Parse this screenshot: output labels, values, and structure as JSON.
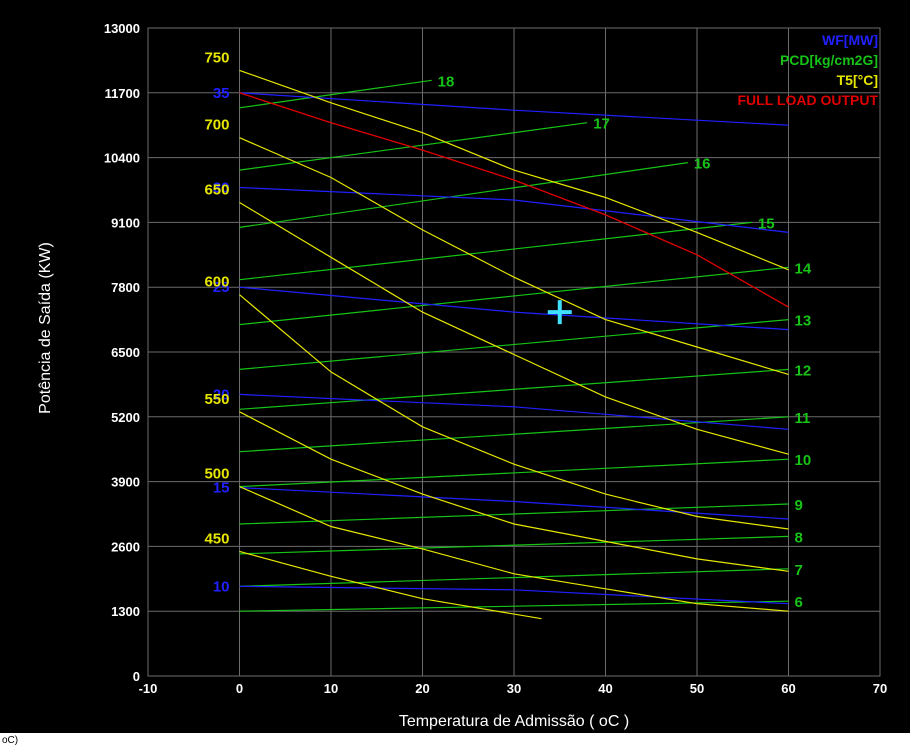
{
  "chart_data": {
    "type": "line",
    "xlabel": "Temperatura de Admissão ( oC )",
    "ylabel": "Potência de Saída (KW)",
    "xlim": [
      -10,
      70
    ],
    "ylim": [
      0,
      13000
    ],
    "x_ticks": [
      "-10",
      "0",
      "10",
      "20",
      "30",
      "40",
      "50",
      "60",
      "70"
    ],
    "y_ticks": [
      "0",
      "1300",
      "2600",
      "3900",
      "5200",
      "6500",
      "7800",
      "9100",
      "10400",
      "11700",
      "13000"
    ],
    "grid": true,
    "colors": {
      "background": "#000000",
      "grid": "#6b6b6b",
      "wf": "#2020ff",
      "pcd": "#16c316",
      "t5": "#e6e600",
      "full_load": "#e00000",
      "marker": "#40e0ff"
    },
    "legend": [
      {
        "label": "WF[MW]",
        "color": "#2020ff"
      },
      {
        "label": "PCD[kg/cm2G]",
        "color": "#16c316"
      },
      {
        "label": "T5[°C]",
        "color": "#e6e600"
      },
      {
        "label": "FULL LOAD OUTPUT",
        "color": "#e00000"
      }
    ],
    "legend_position": "top-right",
    "marker_point": {
      "x": 35,
      "y": 7300
    },
    "pcd_series": [
      {
        "label": "6",
        "x": [
          0,
          60
        ],
        "y": [
          1300,
          1500
        ]
      },
      {
        "label": "7",
        "x": [
          0,
          60
        ],
        "y": [
          1800,
          2150
        ]
      },
      {
        "label": "8",
        "x": [
          0,
          60
        ],
        "y": [
          2450,
          2800
        ]
      },
      {
        "label": "9",
        "x": [
          0,
          60
        ],
        "y": [
          3050,
          3450
        ]
      },
      {
        "label": "10",
        "x": [
          0,
          60
        ],
        "y": [
          3800,
          4350
        ]
      },
      {
        "label": "11",
        "x": [
          0,
          60
        ],
        "y": [
          4500,
          5200
        ]
      },
      {
        "label": "12",
        "x": [
          0,
          60
        ],
        "y": [
          5350,
          6150
        ]
      },
      {
        "label": "13",
        "x": [
          0,
          60
        ],
        "y": [
          6150,
          7150
        ]
      },
      {
        "label": "14",
        "x": [
          0,
          60
        ],
        "y": [
          7050,
          8200
        ]
      },
      {
        "label": "15",
        "x": [
          0,
          56
        ],
        "y": [
          7950,
          9100
        ]
      },
      {
        "label": "16",
        "x": [
          0,
          49
        ],
        "y": [
          9000,
          10300
        ]
      },
      {
        "label": "17",
        "x": [
          0,
          38
        ],
        "y": [
          10150,
          11100
        ]
      },
      {
        "label": "18",
        "x": [
          0,
          21
        ],
        "y": [
          11400,
          11950
        ]
      }
    ],
    "wf_series": [
      {
        "label": "10",
        "x": [
          0,
          30,
          60
        ],
        "y": [
          1800,
          1730,
          1450
        ]
      },
      {
        "label": "15",
        "x": [
          0,
          30,
          60
        ],
        "y": [
          3780,
          3500,
          3150
        ]
      },
      {
        "label": "20",
        "x": [
          0,
          30,
          60
        ],
        "y": [
          5650,
          5400,
          4950
        ]
      },
      {
        "label": "25",
        "x": [
          0,
          30,
          60
        ],
        "y": [
          7800,
          7300,
          6950
        ]
      },
      {
        "label": "30",
        "x": [
          0,
          30,
          60
        ],
        "y": [
          9800,
          9550,
          8900
        ]
      },
      {
        "label": "35",
        "x": [
          0,
          30,
          60
        ],
        "y": [
          11700,
          11350,
          11050
        ]
      }
    ],
    "t5_series": [
      {
        "label": "450",
        "x": [
          0,
          10,
          20,
          33
        ],
        "y": [
          2500,
          2000,
          1550,
          1150
        ]
      },
      {
        "label": "500",
        "x": [
          0,
          10,
          20,
          30,
          40,
          50,
          60
        ],
        "y": [
          3800,
          3000,
          2550,
          2050,
          1750,
          1450,
          1300
        ]
      },
      {
        "label": "550",
        "x": [
          0,
          10,
          20,
          30,
          40,
          50,
          60
        ],
        "y": [
          5300,
          4350,
          3650,
          3050,
          2700,
          2350,
          2100
        ]
      },
      {
        "label": "600",
        "x": [
          0,
          10,
          20,
          30,
          40,
          50,
          60
        ],
        "y": [
          7650,
          6100,
          5000,
          4250,
          3650,
          3200,
          2950
        ]
      },
      {
        "label": "650",
        "x": [
          0,
          10,
          20,
          30,
          40,
          50,
          60
        ],
        "y": [
          9500,
          8400,
          7300,
          6450,
          5600,
          4950,
          4450
        ]
      },
      {
        "label": "700",
        "x": [
          0,
          10,
          20,
          30,
          40,
          50,
          60
        ],
        "y": [
          10800,
          10000,
          8950,
          8000,
          7150,
          6600,
          6050
        ]
      },
      {
        "label": "750",
        "x": [
          0,
          10,
          20,
          30,
          40,
          50,
          60
        ],
        "y": [
          12150,
          11500,
          10900,
          10150,
          9600,
          8900,
          8150
        ]
      }
    ],
    "full_load_output": {
      "label": "FULL LOAD OUTPUT",
      "x": [
        0,
        10,
        20,
        30,
        40,
        50,
        60
      ],
      "y": [
        11700,
        11100,
        10550,
        9950,
        9250,
        8450,
        7400
      ]
    }
  },
  "footer": {
    "corner_text": "oC)"
  }
}
